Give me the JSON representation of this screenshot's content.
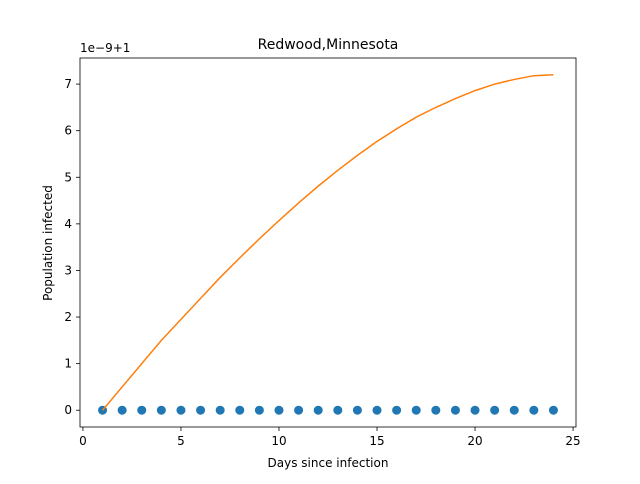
{
  "chart_data": {
    "type": "scatter",
    "title": "Redwood,Minnesota",
    "xlabel": "Days since infection",
    "ylabel": "Population infected",
    "offset_label": "1e−9+1",
    "xlim": [
      -0.15,
      25.15
    ],
    "ylim": [
      -0.36,
      7.56
    ],
    "x_ticks": [
      0,
      5,
      10,
      15,
      20,
      25
    ],
    "y_ticks": [
      0,
      1,
      2,
      3,
      4,
      5,
      6,
      7
    ],
    "grid": false,
    "series": [
      {
        "kind": "scatter",
        "color": "#1f77b4",
        "x": [
          1,
          2,
          3,
          4,
          5,
          6,
          7,
          8,
          9,
          10,
          11,
          12,
          13,
          14,
          15,
          16,
          17,
          18,
          19,
          20,
          21,
          22,
          23,
          24
        ],
        "y": [
          0,
          0,
          0,
          0,
          0,
          0,
          0,
          0,
          0,
          0,
          0,
          0,
          0,
          0,
          0,
          0,
          0,
          0,
          0,
          0,
          0,
          0,
          0,
          0
        ]
      },
      {
        "kind": "line",
        "color": "#ff7f0e",
        "x": [
          1,
          2,
          3,
          4,
          5,
          6,
          7,
          8,
          9,
          10,
          11,
          12,
          13,
          14,
          15,
          16,
          17,
          18,
          19,
          20,
          21,
          22,
          23,
          24
        ],
        "y": [
          0,
          0.5,
          1.0,
          1.5,
          1.95,
          2.4,
          2.85,
          3.27,
          3.68,
          4.07,
          4.45,
          4.81,
          5.15,
          5.47,
          5.77,
          6.04,
          6.29,
          6.5,
          6.69,
          6.86,
          7.0,
          7.1,
          7.18,
          7.2
        ]
      }
    ]
  }
}
